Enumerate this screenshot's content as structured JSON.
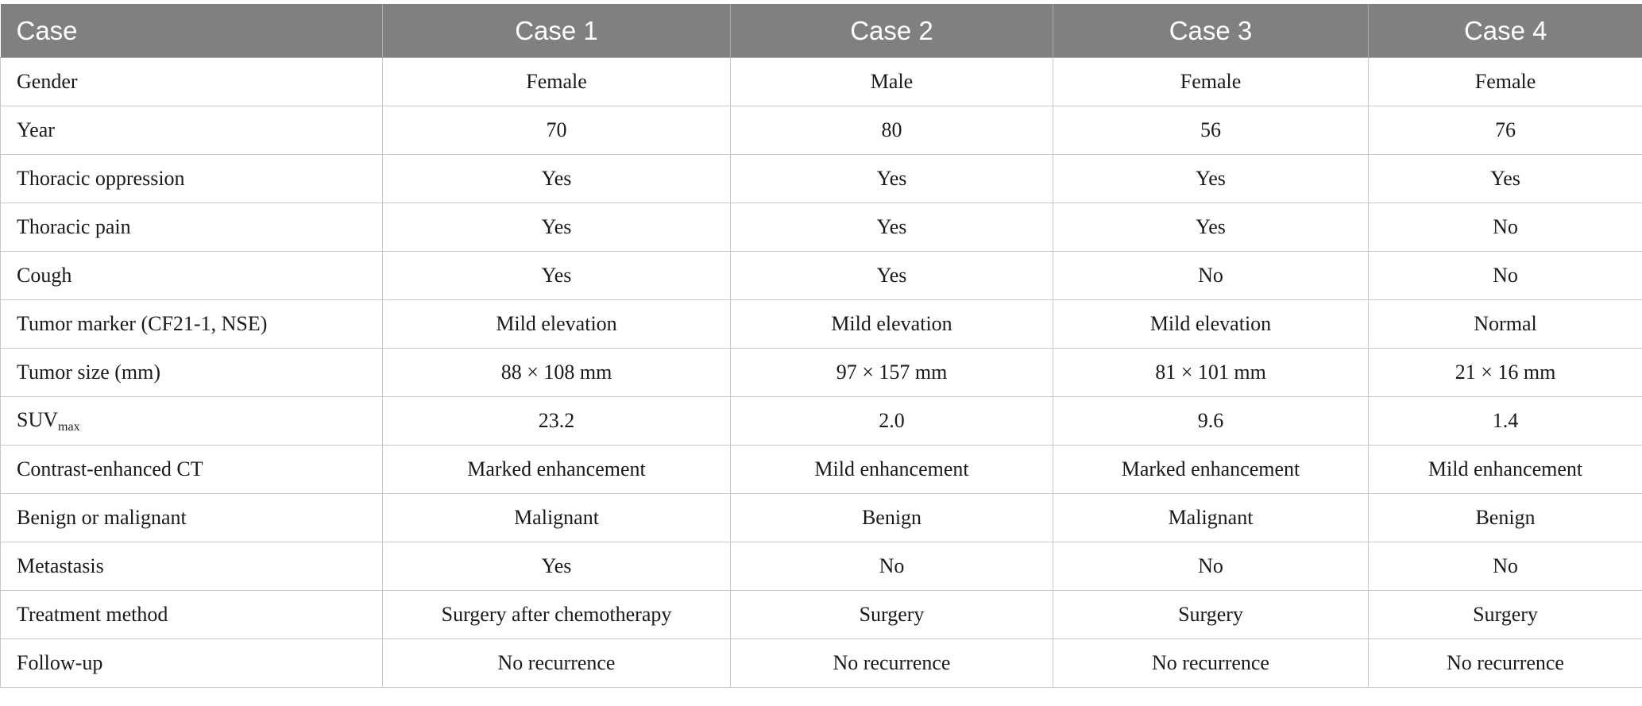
{
  "table": {
    "headers": [
      "Case",
      "Case 1",
      "Case 2",
      "Case 3",
      "Case 4"
    ],
    "rows": [
      {
        "label": "Gender",
        "values": [
          "Female",
          "Male",
          "Female",
          "Female"
        ]
      },
      {
        "label": "Year",
        "values": [
          "70",
          "80",
          "56",
          "76"
        ]
      },
      {
        "label": "Thoracic oppression",
        "values": [
          "Yes",
          "Yes",
          "Yes",
          "Yes"
        ]
      },
      {
        "label": "Thoracic pain",
        "values": [
          "Yes",
          "Yes",
          "Yes",
          "No"
        ]
      },
      {
        "label": "Cough",
        "values": [
          "Yes",
          "Yes",
          "No",
          "No"
        ]
      },
      {
        "label": "Tumor marker (CF21-1, NSE)",
        "values": [
          "Mild elevation",
          "Mild elevation",
          "Mild elevation",
          "Normal"
        ]
      },
      {
        "label": "Tumor size (mm)",
        "values": [
          "88 × 108 mm",
          "97 × 157 mm",
          "81 × 101 mm",
          "21 × 16 mm"
        ]
      },
      {
        "label": "SUV",
        "label_sub": "max",
        "values": [
          "23.2",
          "2.0",
          "9.6",
          "1.4"
        ]
      },
      {
        "label": "Contrast-enhanced CT",
        "values": [
          "Marked enhancement",
          "Mild enhancement",
          "Marked enhancement",
          "Mild enhancement"
        ]
      },
      {
        "label": "Benign or malignant",
        "values": [
          "Malignant",
          "Benign",
          "Malignant",
          "Benign"
        ]
      },
      {
        "label": "Metastasis",
        "values": [
          "Yes",
          "No",
          "No",
          "No"
        ]
      },
      {
        "label": "Treatment method",
        "values": [
          "Surgery after chemotherapy",
          "Surgery",
          "Surgery",
          "Surgery"
        ]
      },
      {
        "label": "Follow-up",
        "values": [
          "No recurrence",
          "No recurrence",
          "No recurrence",
          "No recurrence"
        ]
      }
    ]
  }
}
